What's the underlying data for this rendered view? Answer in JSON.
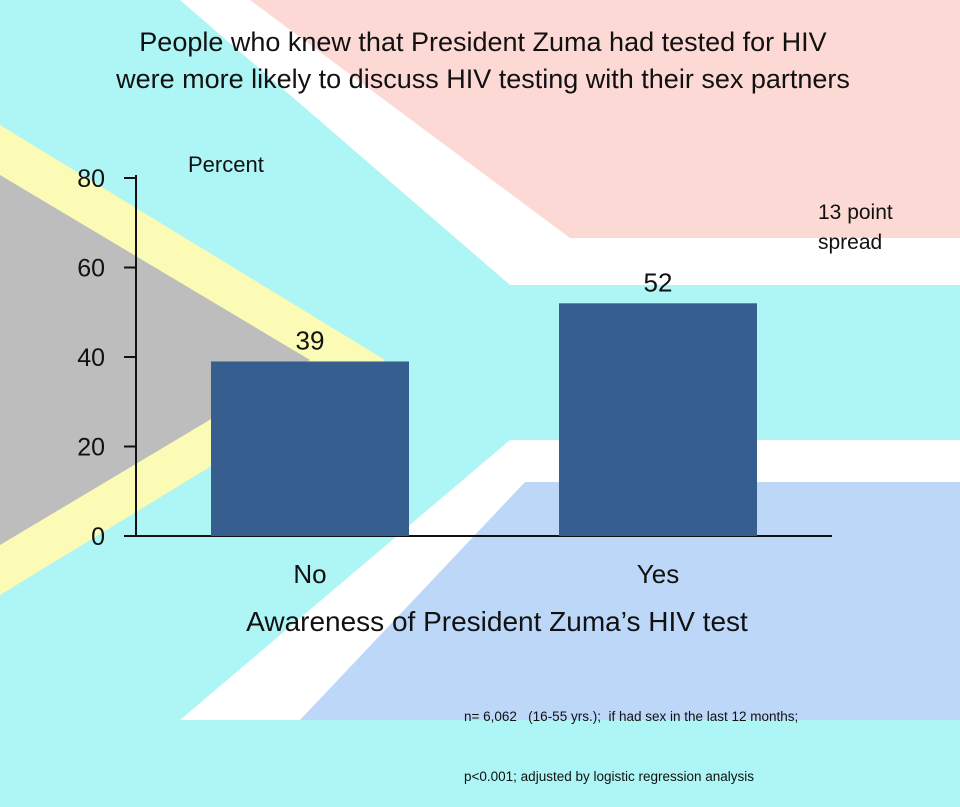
{
  "title_lines": [
    "People who knew that President Zuma had tested for HIV",
    "were more likely to discuss HIV testing with their sex partners"
  ],
  "annotation": [
    "13 point",
    "spread"
  ],
  "footnote_lines": [
    "n= 6,062   (16-55 yrs.);  if had sex in the last 12 months;",
    "p<0.001; adjusted by logistic regression analysis"
  ],
  "colors": {
    "bar": "#365f90",
    "flag_red": "#fcd9d5",
    "flag_blue": "#bcd7f8",
    "flag_green": "#aef5f5",
    "flag_yellow": "#fbfbb6",
    "flag_black": "#bdbdbd",
    "flag_white": "#ffffff"
  },
  "chart_data": {
    "type": "bar",
    "categories": [
      "No",
      "Yes"
    ],
    "values": [
      39,
      52
    ],
    "data_labels": [
      "39",
      "52"
    ],
    "ylabel": "Percent",
    "xlabel": "Awareness of President Zuma’s HIV test",
    "ylim": [
      0,
      80
    ],
    "yticks": [
      0,
      20,
      40,
      60,
      80
    ],
    "grid": false,
    "legend": "none"
  }
}
